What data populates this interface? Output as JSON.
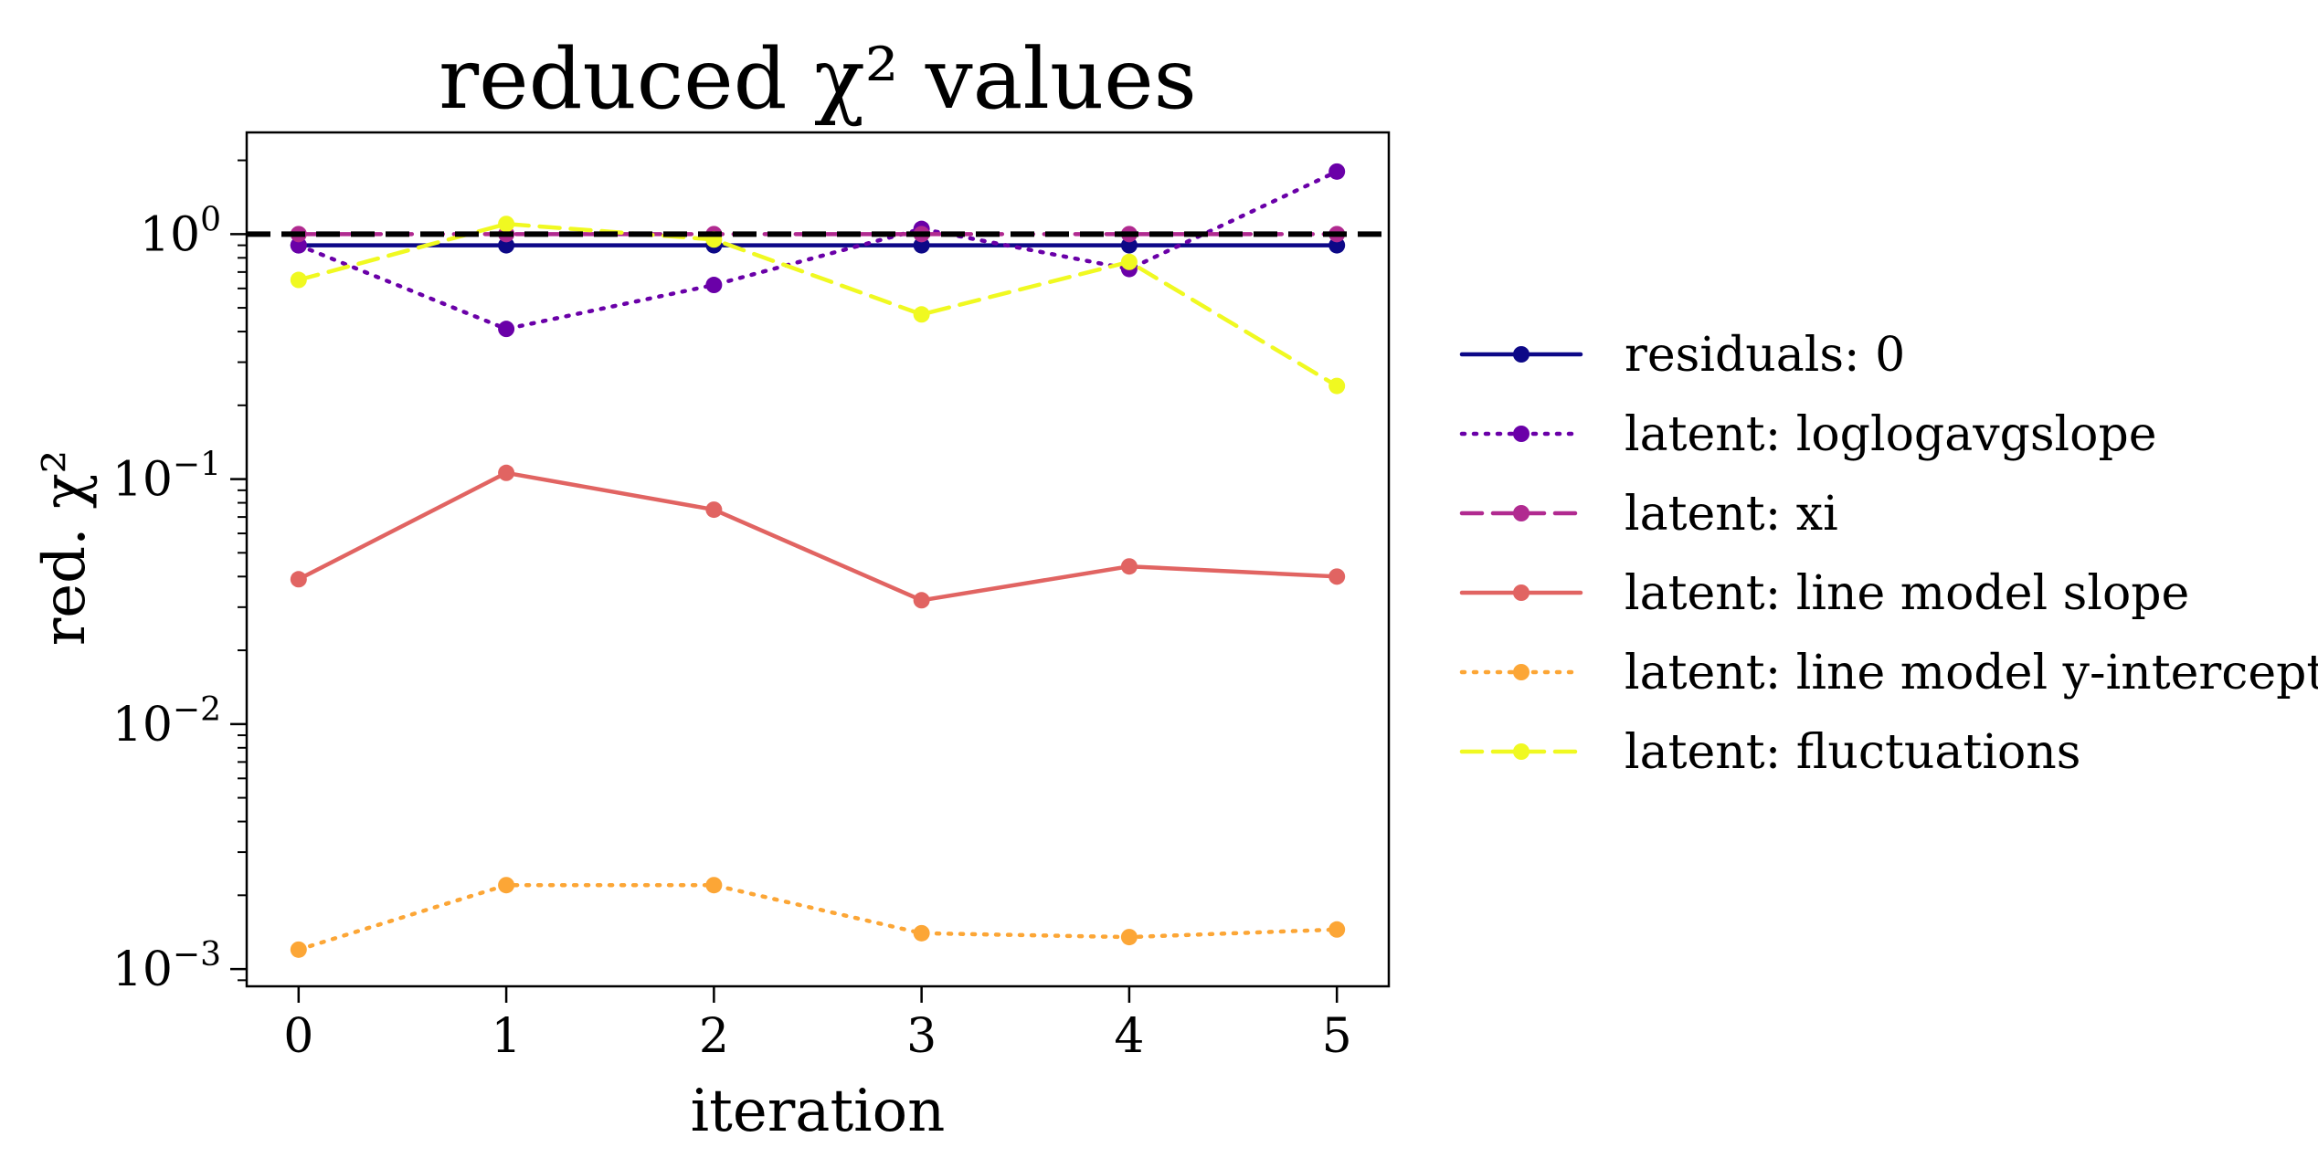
{
  "chart_data": {
    "type": "line",
    "title": "reduced χ² values",
    "xlabel": "iteration",
    "ylabel": "red. χ²",
    "yscale": "log",
    "xlim": [
      -0.25,
      5.25
    ],
    "ylim": [
      0.00085,
      2.6
    ],
    "x": [
      0,
      1,
      2,
      3,
      4,
      5
    ],
    "x_tick_labels": [
      "0",
      "1",
      "2",
      "3",
      "4",
      "5"
    ],
    "y_ticks": [
      {
        "value": 1,
        "base": "10",
        "exp": "0"
      },
      {
        "value": 0.1,
        "base": "10",
        "exp": "−1"
      },
      {
        "value": 0.01,
        "base": "10",
        "exp": "−2"
      },
      {
        "value": 0.001,
        "base": "10",
        "exp": "−3"
      }
    ],
    "reference_line": {
      "y": 1.0,
      "style": "dashed",
      "color": "#000000"
    },
    "legend_position": "right, outside plot",
    "grid": false,
    "series": [
      {
        "name": "residuals: 0",
        "color": "#0d0887",
        "dash": "solid",
        "values": [
          0.9,
          0.9,
          0.9,
          0.9,
          0.9,
          0.9
        ]
      },
      {
        "name": "latent: loglogavgslope",
        "color": "#6a00a8",
        "dash": "dotted",
        "values": [
          0.9,
          0.41,
          0.62,
          1.05,
          0.72,
          1.8
        ]
      },
      {
        "name": "latent: xi",
        "color": "#b12a90",
        "dash": "dashed",
        "values": [
          1.0,
          1.0,
          1.0,
          1.0,
          1.0,
          1.0
        ]
      },
      {
        "name": "latent: line model slope",
        "color": "#e16462",
        "dash": "solid",
        "values": [
          0.039,
          0.106,
          0.075,
          0.032,
          0.044,
          0.04
        ]
      },
      {
        "name": "latent: line model y-intercept",
        "color": "#fca636",
        "dash": "dotted",
        "values": [
          0.0012,
          0.0022,
          0.0022,
          0.0014,
          0.00135,
          0.00145
        ]
      },
      {
        "name": "latent: fluctuations",
        "color": "#f0f921",
        "dash": "dashed",
        "values": [
          0.65,
          1.1,
          0.95,
          0.47,
          0.77,
          0.24
        ]
      }
    ]
  }
}
